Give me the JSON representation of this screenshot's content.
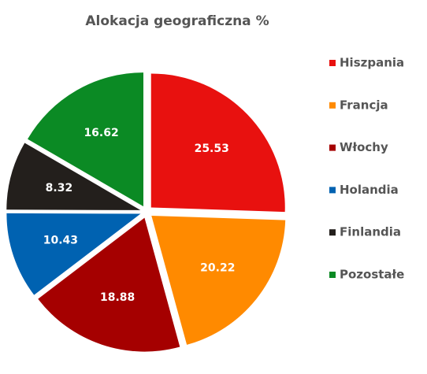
{
  "chart_data": {
    "type": "pie",
    "title": "Alokacja geograficzna %",
    "categories": [
      "Hiszpania",
      "Francja",
      "Włochy",
      "Holandia",
      "Finlandia",
      "Pozostałe"
    ],
    "values": [
      25.53,
      20.22,
      18.88,
      10.43,
      8.32,
      16.62
    ],
    "colors": [
      "#e8110f",
      "#ff8a00",
      "#a50000",
      "#0062b1",
      "#231f1c",
      "#0b8a24"
    ],
    "legend": "right"
  }
}
